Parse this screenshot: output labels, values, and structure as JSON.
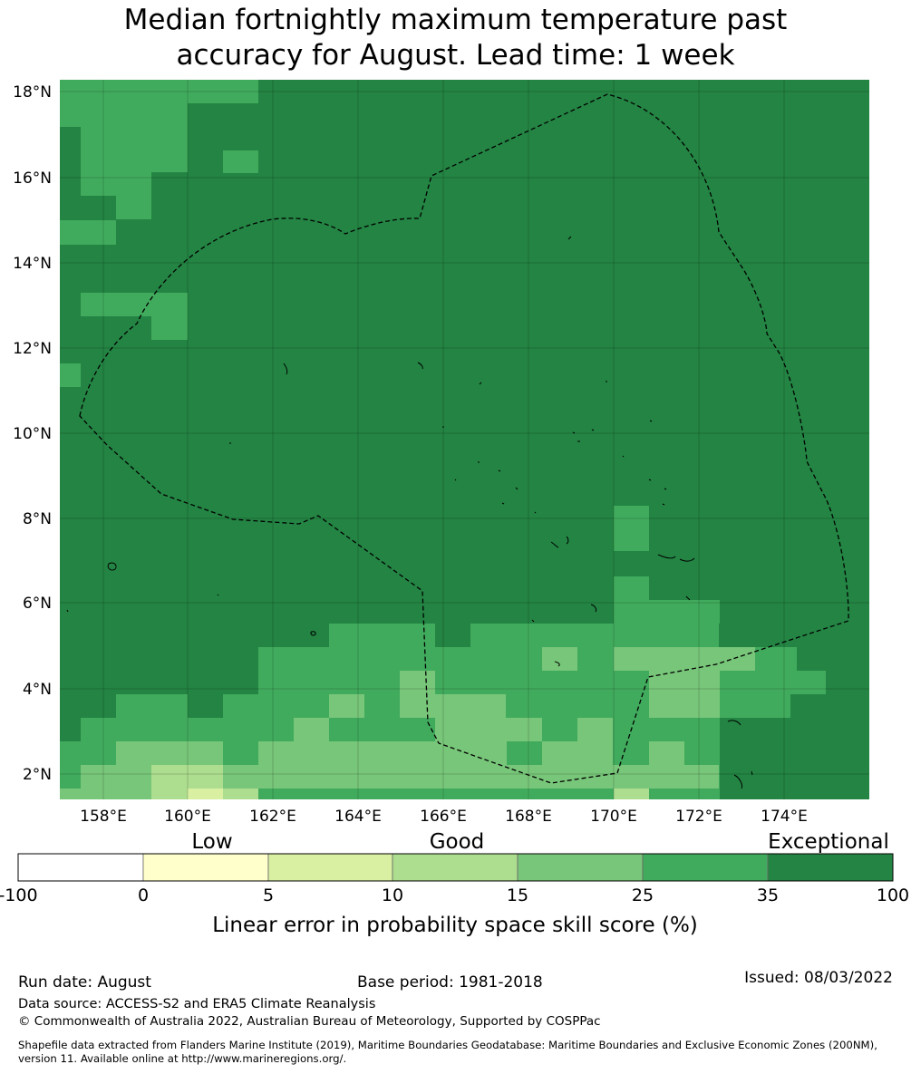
{
  "title": {
    "line1": "Median fortnightly maximum temperature past",
    "line2": "accuracy for August. Lead time: 1 week"
  },
  "axes": {
    "lat_labels": [
      "18°N",
      "16°N",
      "14°N",
      "12°N",
      "10°N",
      "8°N",
      "6°N",
      "4°N",
      "2°N"
    ],
    "lon_labels": [
      "158°E",
      "160°E",
      "162°E",
      "164°E",
      "166°E",
      "168°E",
      "170°E",
      "172°E",
      "174°E"
    ]
  },
  "legend": {
    "categories": [
      "Low",
      "Good",
      "Exceptional"
    ],
    "ticks": [
      "-100",
      "0",
      "5",
      "10",
      "15",
      "25",
      "35",
      "100"
    ],
    "colors": [
      "#ffffff",
      "#ffffcc",
      "#d9f0a3",
      "#addd8e",
      "#78c679",
      "#41ab5d",
      "#238443"
    ],
    "label": "Linear error in probability space skill score (%)"
  },
  "footer": {
    "run_date": "Run date: August",
    "base_period": "Base period: 1981-2018",
    "issued": "Issued: 08/03/2022",
    "data_source": "Data source: ACCESS-S2 and ERA5 Climate Reanalysis",
    "copyright": "© Commonwealth of Australia 2022, Australian Bureau of Meteorology, Supported by COSPPac",
    "shapefile_line1": "Shapefile data extracted from Flanders Marine Institute (2019), Maritime Boundaries Geodatabase: Maritime Boundaries and Exclusive Economic Zones (200NM),",
    "shapefile_line2": "version 11. Available online at http://www.marineregions.org/."
  }
}
